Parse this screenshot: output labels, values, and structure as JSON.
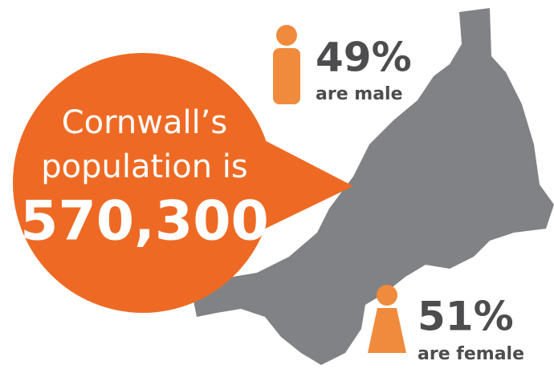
{
  "bubble": {
    "line1": "Cornwall’s",
    "line2": "population is",
    "population": "570,300"
  },
  "male": {
    "percent": "49%",
    "label": "are male"
  },
  "female": {
    "percent": "51%",
    "label": "are female"
  }
}
